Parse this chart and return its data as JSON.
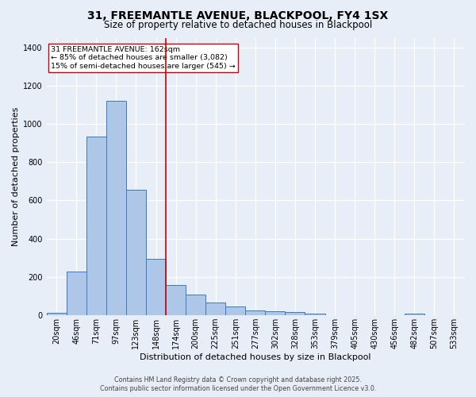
{
  "title": "31, FREEMANTLE AVENUE, BLACKPOOL, FY4 1SX",
  "subtitle": "Size of property relative to detached houses in Blackpool",
  "xlabel": "Distribution of detached houses by size in Blackpool",
  "ylabel": "Number of detached properties",
  "categories": [
    "20sqm",
    "46sqm",
    "71sqm",
    "97sqm",
    "123sqm",
    "148sqm",
    "174sqm",
    "200sqm",
    "225sqm",
    "251sqm",
    "277sqm",
    "302sqm",
    "328sqm",
    "353sqm",
    "379sqm",
    "405sqm",
    "430sqm",
    "456sqm",
    "482sqm",
    "507sqm",
    "533sqm"
  ],
  "values": [
    15,
    230,
    935,
    1120,
    655,
    295,
    160,
    110,
    68,
    45,
    25,
    20,
    18,
    10,
    0,
    0,
    0,
    0,
    8,
    0,
    0
  ],
  "bar_color": "#aec6e8",
  "bar_edge_color": "#3a7abf",
  "vline_x": 5.5,
  "vline_color": "#cc0000",
  "annotation_text": "31 FREEMANTLE AVENUE: 162sqm\n← 85% of detached houses are smaller (3,082)\n15% of semi-detached houses are larger (545) →",
  "annotation_box_color": "#ffffff",
  "annotation_box_edge": "#cc0000",
  "background_color": "#e8eef8",
  "grid_color": "#ffffff",
  "footer_line1": "Contains HM Land Registry data © Crown copyright and database right 2025.",
  "footer_line2": "Contains public sector information licensed under the Open Government Licence v3.0.",
  "ylim": [
    0,
    1450
  ],
  "yticks": [
    0,
    200,
    400,
    600,
    800,
    1000,
    1200,
    1400
  ],
  "title_fontsize": 10,
  "subtitle_fontsize": 8.5,
  "ylabel_fontsize": 8,
  "xlabel_fontsize": 8,
  "tick_fontsize": 7,
  "annot_fontsize": 6.8,
  "footer_fontsize": 5.8
}
